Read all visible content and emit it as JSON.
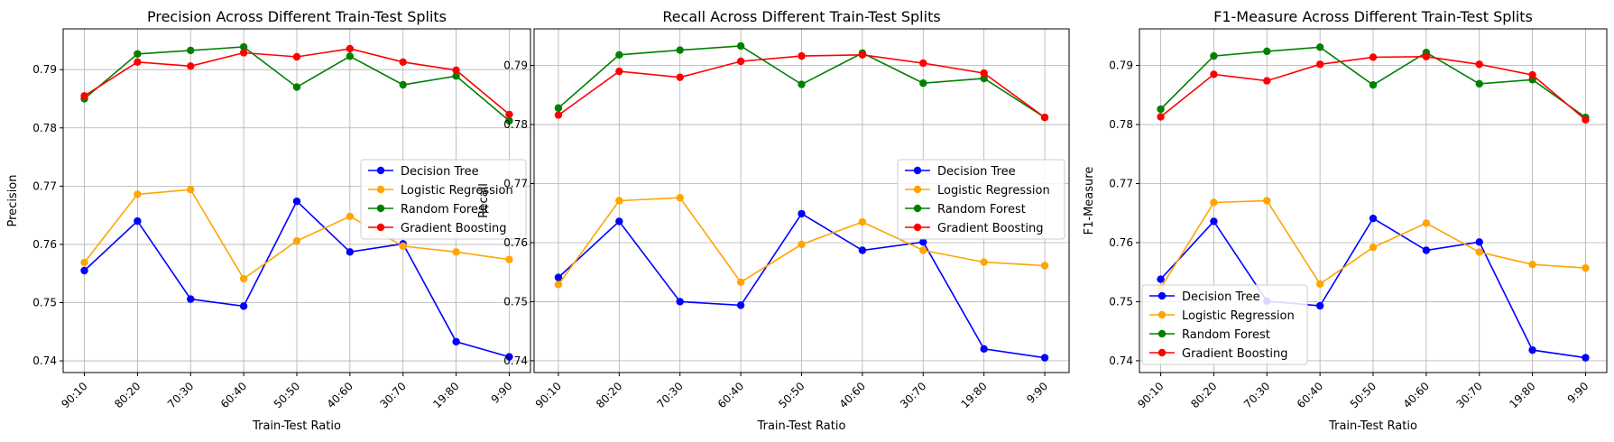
{
  "chart_data": [
    {
      "type": "line",
      "title": "Precision Across Different Train-Test Splits",
      "xlabel": "Train-Test Ratio",
      "ylabel": "Precision",
      "categories": [
        "90:10",
        "80:20",
        "70:30",
        "60:40",
        "50:50",
        "40:60",
        "30:70",
        "19:80",
        "9:90"
      ],
      "ylim": [
        0.738,
        0.797
      ],
      "yticks": [
        0.74,
        0.75,
        0.76,
        0.77,
        0.78,
        0.79
      ],
      "grid": true,
      "legend_position": "center-right",
      "series": [
        {
          "name": "Decision Tree",
          "color": "#0000ff",
          "values": [
            0.7555,
            0.764,
            0.7506,
            0.7494,
            0.7674,
            0.7587,
            0.7601,
            0.7433,
            0.7407
          ]
        },
        {
          "name": "Logistic Regression",
          "color": "#ffa500",
          "values": [
            0.7569,
            0.7686,
            0.7694,
            0.7541,
            0.7606,
            0.7648,
            0.7597,
            0.7587,
            0.7574
          ]
        },
        {
          "name": "Random Forest",
          "color": "#008000",
          "values": [
            0.785,
            0.7927,
            0.7933,
            0.7939,
            0.787,
            0.7923,
            0.7874,
            0.7889,
            0.7812
          ]
        },
        {
          "name": "Gradient Boosting",
          "color": "#ff0000",
          "values": [
            0.7855,
            0.7913,
            0.7906,
            0.7929,
            0.7922,
            0.7936,
            0.7913,
            0.7899,
            0.7823
          ]
        }
      ]
    },
    {
      "type": "line",
      "title": "Recall Across Different Train-Test Splits",
      "xlabel": "Train-Test Ratio",
      "ylabel": "Recall",
      "categories": [
        "90:10",
        "80:20",
        "70:30",
        "60:40",
        "50:50",
        "40:60",
        "30:70",
        "19:80",
        "9:90"
      ],
      "ylim": [
        0.738,
        0.7962
      ],
      "yticks": [
        0.74,
        0.75,
        0.76,
        0.77,
        0.78,
        0.79
      ],
      "grid": true,
      "legend_position": "center-right",
      "series": [
        {
          "name": "Decision Tree",
          "color": "#0000ff",
          "values": [
            0.7541,
            0.7636,
            0.75,
            0.7494,
            0.7649,
            0.7587,
            0.7601,
            0.742,
            0.7405
          ]
        },
        {
          "name": "Logistic Regression",
          "color": "#ffa500",
          "values": [
            0.7529,
            0.7671,
            0.7676,
            0.7533,
            0.7597,
            0.7635,
            0.7587,
            0.7567,
            0.7561
          ]
        },
        {
          "name": "Random Forest",
          "color": "#008000",
          "values": [
            0.7828,
            0.7918,
            0.7926,
            0.7933,
            0.7868,
            0.7921,
            0.787,
            0.7878,
            0.7812
          ]
        },
        {
          "name": "Gradient Boosting",
          "color": "#ff0000",
          "values": [
            0.7816,
            0.789,
            0.788,
            0.7907,
            0.7916,
            0.7918,
            0.7904,
            0.7887,
            0.7812
          ]
        }
      ]
    },
    {
      "type": "line",
      "title": "F1-Measure Across Different Train-Test Splits",
      "xlabel": "Train-Test Ratio",
      "ylabel": "F1-Measure",
      "categories": [
        "90:10",
        "80:20",
        "70:30",
        "60:40",
        "50:50",
        "40:60",
        "30:70",
        "19:80",
        "9:90"
      ],
      "ylim": [
        0.738,
        0.7962
      ],
      "yticks": [
        0.74,
        0.75,
        0.76,
        0.77,
        0.78,
        0.79
      ],
      "grid": true,
      "legend_position": "lower-left",
      "series": [
        {
          "name": "Decision Tree",
          "color": "#0000ff",
          "values": [
            0.7538,
            0.7636,
            0.7501,
            0.7493,
            0.7641,
            0.7587,
            0.7601,
            0.7418,
            0.7405
          ]
        },
        {
          "name": "Logistic Regression",
          "color": "#ffa500",
          "values": [
            0.7523,
            0.7668,
            0.7671,
            0.753,
            0.7592,
            0.7633,
            0.7584,
            0.7563,
            0.7557
          ]
        },
        {
          "name": "Random Forest",
          "color": "#008000",
          "values": [
            0.7826,
            0.7916,
            0.7924,
            0.7931,
            0.7867,
            0.7922,
            0.7869,
            0.7876,
            0.7812
          ]
        },
        {
          "name": "Gradient Boosting",
          "color": "#ff0000",
          "values": [
            0.7813,
            0.7885,
            0.7874,
            0.7902,
            0.7914,
            0.7915,
            0.7902,
            0.7884,
            0.7808
          ]
        }
      ]
    }
  ]
}
